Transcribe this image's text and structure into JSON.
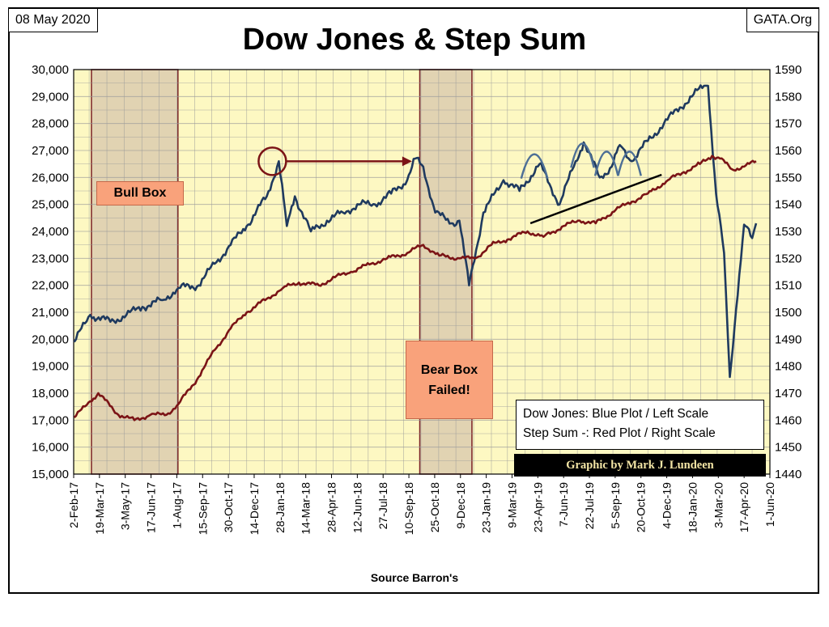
{
  "header": {
    "date": "08 May 2020",
    "source": "GATA.Org",
    "title": "Dow Jones & Step Sum"
  },
  "annotations": {
    "bull_box": "Bull Box",
    "bear_box_line1": "Bear Box",
    "bear_box_line2": "Failed!",
    "legend_line1": "Dow Jones: Blue Plot / Left Scale",
    "legend_line2": "Step Sum -: Red Plot / Right Scale",
    "credit": "Graphic by Mark J. Lundeen"
  },
  "colors": {
    "plot_bg": "#fdf8c2",
    "dow_series": "#1f3a5f",
    "stepsum_series": "#7b1416",
    "box_fill": "#e1d3b2",
    "box_border": "#7b2226",
    "label_fill": "#f9a27b"
  },
  "chart_data": {
    "type": "line",
    "title": "Dow Jones & Step Sum",
    "xlabel": "Source Barron's",
    "ylabel_left": "",
    "ylabel_right": "",
    "ylim_left": [
      15000,
      30000
    ],
    "ylim_right": [
      1440,
      1590
    ],
    "yticks_left": [
      "15,000",
      "16,000",
      "17,000",
      "18,000",
      "19,000",
      "20,000",
      "21,000",
      "22,000",
      "23,000",
      "24,000",
      "25,000",
      "26,000",
      "27,000",
      "28,000",
      "29,000",
      "30,000"
    ],
    "yticks_right": [
      "1440",
      "1450",
      "1460",
      "1470",
      "1480",
      "1490",
      "1500",
      "1510",
      "1520",
      "1530",
      "1540",
      "1550",
      "1560",
      "1570",
      "1580",
      "1590"
    ],
    "x_tick_labels": [
      "2-Feb-17",
      "19-Mar-17",
      "3-May-17",
      "17-Jun-17",
      "1-Aug-17",
      "15-Sep-17",
      "30-Oct-17",
      "14-Dec-17",
      "28-Jan-18",
      "14-Mar-18",
      "28-Apr-18",
      "12-Jun-18",
      "27-Jul-18",
      "10-Sep-18",
      "25-Oct-18",
      "9-Dec-18",
      "23-Jan-19",
      "9-Mar-19",
      "23-Apr-19",
      "7-Jun-19",
      "22-Jul-19",
      "5-Sep-19",
      "20-Oct-19",
      "4-Dec-19",
      "18-Jan-20",
      "3-Mar-20",
      "17-Apr-20",
      "1-Jun-20"
    ],
    "grid": true,
    "legend": "bottom-right",
    "shaded_regions": [
      {
        "label": "Bull Box",
        "x_start": "2017-03-05",
        "x_end": "2017-08-03",
        "y_start": 15000,
        "y_end": 30000
      },
      {
        "label": "Bear Box Failed!",
        "x_start": "2018-09-29",
        "x_end": "2018-12-29",
        "y_start": 15000,
        "y_end": 30000
      }
    ],
    "series": [
      {
        "name": "Dow Jones",
        "axis": "left",
        "x": [
          "2017-02-03",
          "2017-03-03",
          "2017-04-07",
          "2017-05-05",
          "2017-06-02",
          "2017-07-07",
          "2017-08-04",
          "2017-09-08",
          "2017-10-06",
          "2017-11-03",
          "2017-12-01",
          "2018-01-05",
          "2018-01-26",
          "2018-02-09",
          "2018-02-23",
          "2018-03-23",
          "2018-04-20",
          "2018-05-18",
          "2018-06-15",
          "2018-07-13",
          "2018-08-10",
          "2018-09-07",
          "2018-09-21",
          "2018-10-05",
          "2018-10-26",
          "2018-11-23",
          "2018-12-07",
          "2018-12-24",
          "2019-01-18",
          "2019-02-22",
          "2019-03-22",
          "2019-04-26",
          "2019-05-31",
          "2019-06-28",
          "2019-07-12",
          "2019-08-09",
          "2019-08-30",
          "2019-09-13",
          "2019-10-04",
          "2019-11-01",
          "2019-11-29",
          "2019-12-27",
          "2020-01-17",
          "2020-02-07",
          "2020-02-14",
          "2020-02-28",
          "2020-03-13",
          "2020-03-23",
          "2020-04-03",
          "2020-04-17",
          "2020-05-01",
          "2020-05-08"
        ],
        "y": [
          19900,
          20900,
          20650,
          20900,
          21200,
          21450,
          21900,
          22000,
          22800,
          23500,
          24200,
          25300,
          26600,
          24200,
          25300,
          24000,
          24400,
          24700,
          25000,
          25000,
          25400,
          25900,
          26700,
          26400,
          24700,
          24300,
          24400,
          22000,
          24700,
          25900,
          25500,
          26500,
          25000,
          26600,
          27300,
          26000,
          26400,
          27200,
          26600,
          27350,
          28000,
          28600,
          29000,
          29400,
          29400,
          25400,
          23200,
          18600,
          21100,
          24250,
          23750,
          24300
        ]
      },
      {
        "name": "Step Sum",
        "axis": "right",
        "x": [
          "2017-02-03",
          "2017-03-03",
          "2017-03-17",
          "2017-04-21",
          "2017-05-19",
          "2017-06-16",
          "2017-07-14",
          "2017-08-04",
          "2017-09-08",
          "2017-10-06",
          "2017-11-03",
          "2017-12-01",
          "2018-01-05",
          "2018-02-02",
          "2018-03-02",
          "2018-04-06",
          "2018-05-04",
          "2018-06-01",
          "2018-07-06",
          "2018-08-03",
          "2018-09-07",
          "2018-10-05",
          "2018-11-02",
          "2018-12-07",
          "2019-01-04",
          "2019-02-01",
          "2019-03-01",
          "2019-04-05",
          "2019-05-03",
          "2019-06-07",
          "2019-07-05",
          "2019-08-02",
          "2019-09-06",
          "2019-10-04",
          "2019-11-01",
          "2019-12-06",
          "2020-01-03",
          "2020-01-31",
          "2020-02-21",
          "2020-03-06",
          "2020-03-27",
          "2020-04-17",
          "2020-05-08"
        ],
        "y": [
          1461,
          1467,
          1470,
          1462,
          1460,
          1462,
          1462,
          1466,
          1476,
          1486,
          1494,
          1500,
          1505,
          1509,
          1511,
          1510,
          1513,
          1515,
          1518,
          1520,
          1522,
          1525,
          1521,
          1520,
          1520,
          1525,
          1527,
          1530,
          1528,
          1532,
          1534,
          1533,
          1538,
          1541,
          1544,
          1549,
          1552,
          1555,
          1558,
          1557,
          1553,
          1554,
          1556
        ]
      }
    ]
  }
}
